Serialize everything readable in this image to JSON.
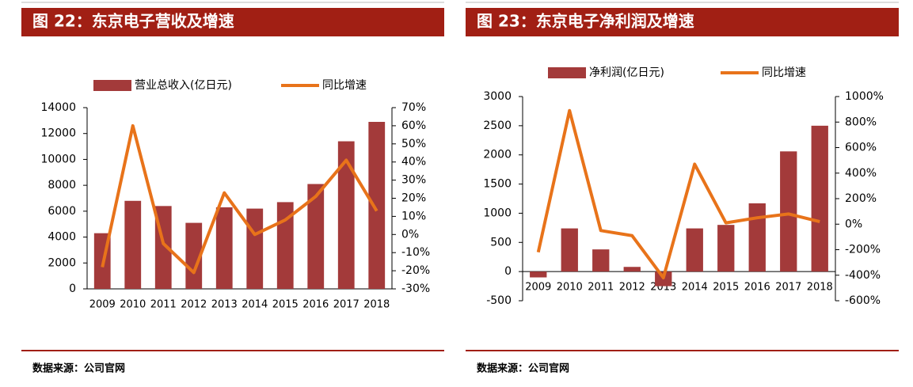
{
  "chart_data": [
    {
      "type": "combo",
      "title": "图 22：东京电子营收及增速",
      "source": "数据来源：公司官网",
      "categories": [
        "2009",
        "2010",
        "2011",
        "2012",
        "2013",
        "2014",
        "2015",
        "2016",
        "2017",
        "2018"
      ],
      "series": [
        {
          "name": "营业总收入(亿日元)",
          "type": "bar",
          "color": "#a33a3a",
          "values": [
            4300,
            6800,
            6400,
            5100,
            6300,
            6200,
            6700,
            8100,
            11400,
            12900
          ]
        },
        {
          "name": "同比增速",
          "type": "line",
          "axis": "y2",
          "color": "#e8731a",
          "values": [
            -18,
            60,
            -5,
            -21,
            23,
            0,
            8,
            21,
            41,
            13
          ]
        }
      ],
      "ylim": [
        0,
        14000
      ],
      "yticks": [
        0,
        2000,
        4000,
        6000,
        8000,
        10000,
        12000,
        14000
      ],
      "y2lim": [
        -30,
        70
      ],
      "y2ticks": [
        {
          "value": -30,
          "label": "-30%"
        },
        {
          "value": -20,
          "label": "-20%"
        },
        {
          "value": -10,
          "label": "-10%"
        },
        {
          "value": 0,
          "label": "0%"
        },
        {
          "value": 10,
          "label": "10%"
        },
        {
          "value": 20,
          "label": "20%"
        },
        {
          "value": 30,
          "label": "30%"
        },
        {
          "value": 40,
          "label": "40%"
        },
        {
          "value": 50,
          "label": "50%"
        },
        {
          "value": 60,
          "label": "60%"
        },
        {
          "value": 70,
          "label": "70%"
        }
      ]
    },
    {
      "type": "combo",
      "title": "图 23：东京电子净利润及增速",
      "source": "数据来源：公司官网",
      "categories": [
        "2009",
        "2010",
        "2011",
        "2012",
        "2013",
        "2014",
        "2015",
        "2016",
        "2017",
        "2018"
      ],
      "series": [
        {
          "name": "净利润(亿日元)",
          "type": "bar",
          "color": "#a33a3a",
          "values": [
            -100,
            740,
            380,
            80,
            -250,
            740,
            800,
            1170,
            2060,
            2500
          ]
        },
        {
          "name": "同比增速",
          "type": "line",
          "axis": "y2",
          "color": "#e8731a",
          "values": [
            -220,
            890,
            -50,
            -90,
            -420,
            470,
            10,
            50,
            80,
            20
          ]
        }
      ],
      "ylim": [
        -500,
        3000
      ],
      "yticks": [
        -500,
        0,
        500,
        1000,
        1500,
        2000,
        2500,
        3000
      ],
      "y2lim": [
        -600,
        1000
      ],
      "y2ticks": [
        {
          "value": -600,
          "label": "-600%"
        },
        {
          "value": -400,
          "label": "-400%"
        },
        {
          "value": -200,
          "label": "-200%"
        },
        {
          "value": 0,
          "label": "0%"
        },
        {
          "value": 200,
          "label": "200%"
        },
        {
          "value": 400,
          "label": "400%"
        },
        {
          "value": 600,
          "label": "600%"
        },
        {
          "value": 800,
          "label": "800%"
        },
        {
          "value": 1000,
          "label": "1000%"
        }
      ]
    }
  ]
}
